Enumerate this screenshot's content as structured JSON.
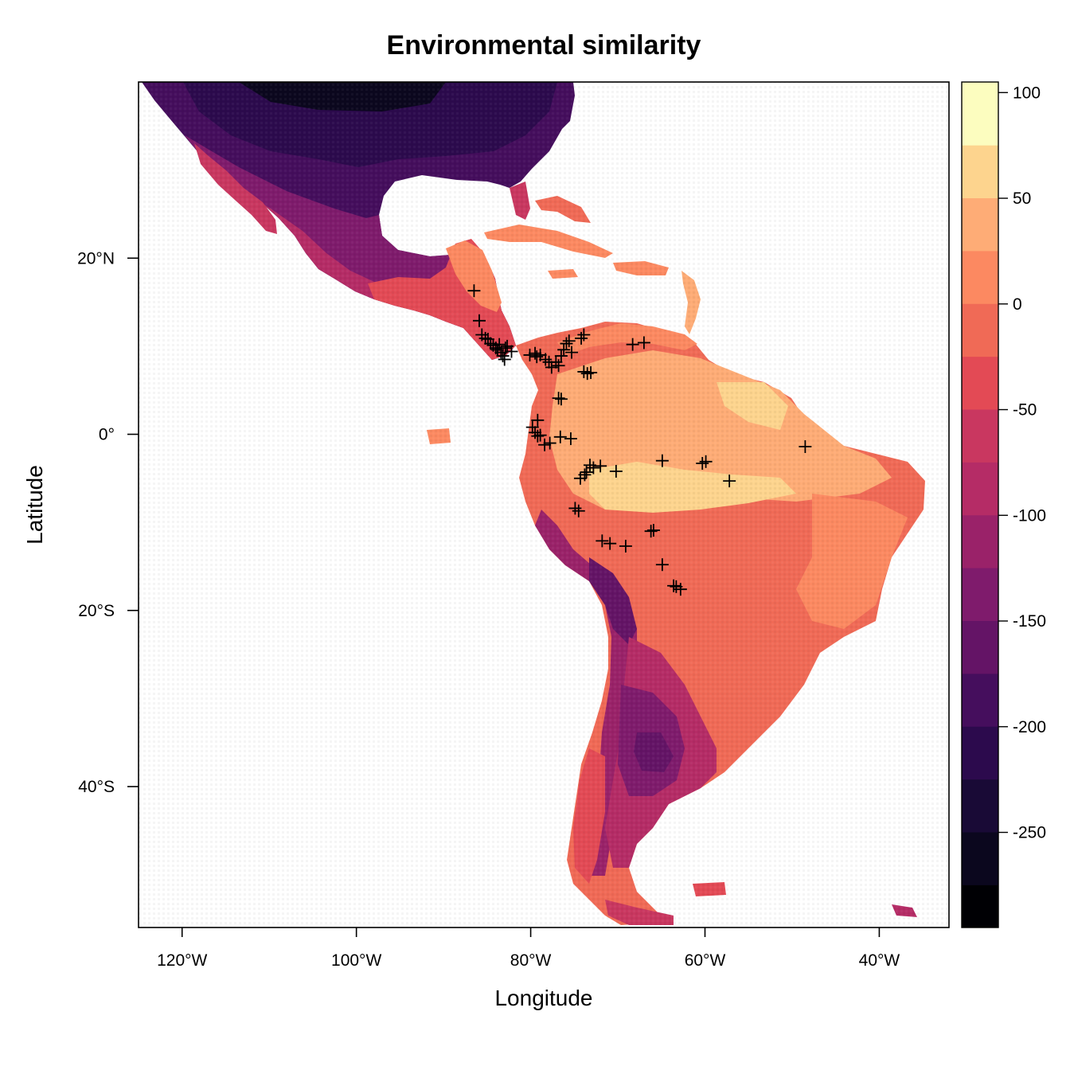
{
  "title": "Environmental similarity",
  "x_axis": {
    "label": "Longitude",
    "range": [
      -125,
      -32
    ],
    "ticks": [
      {
        "value": -120,
        "label": "120°W"
      },
      {
        "value": -100,
        "label": "100°W"
      },
      {
        "value": -80,
        "label": "80°W"
      },
      {
        "value": -60,
        "label": "60°W"
      },
      {
        "value": -40,
        "label": "40°W"
      }
    ]
  },
  "y_axis": {
    "label": "Latitude",
    "range": [
      -56,
      40
    ],
    "ticks": [
      {
        "value": 20,
        "label": "20°N"
      },
      {
        "value": 0,
        "label": "0°"
      },
      {
        "value": -20,
        "label": "20°S"
      },
      {
        "value": -40,
        "label": "40°S"
      }
    ]
  },
  "color_scale": {
    "range": [
      -295,
      105
    ],
    "labels": [
      {
        "value": 100,
        "label": "100"
      },
      {
        "value": 50,
        "label": "50"
      },
      {
        "value": 0,
        "label": "0"
      },
      {
        "value": -50,
        "label": "-50"
      },
      {
        "value": -100,
        "label": "-100"
      },
      {
        "value": -150,
        "label": "-150"
      },
      {
        "value": -200,
        "label": "-200"
      },
      {
        "value": -250,
        "label": "-250"
      }
    ],
    "bins": [
      {
        "from": 75,
        "to": 105,
        "color": "#fcfdbf"
      },
      {
        "from": 50,
        "to": 75,
        "color": "#fdd48e"
      },
      {
        "from": 25,
        "to": 50,
        "color": "#feac76"
      },
      {
        "from": 0,
        "to": 25,
        "color": "#fc8961"
      },
      {
        "from": -25,
        "to": 0,
        "color": "#f06a56"
      },
      {
        "from": -50,
        "to": -25,
        "color": "#e34a55"
      },
      {
        "from": -75,
        "to": -50,
        "color": "#c93760"
      },
      {
        "from": -100,
        "to": -75,
        "color": "#b52c66"
      },
      {
        "from": -125,
        "to": -100,
        "color": "#9a2269"
      },
      {
        "from": -150,
        "to": -125,
        "color": "#7f1b6c"
      },
      {
        "from": -175,
        "to": -150,
        "color": "#641466"
      },
      {
        "from": -200,
        "to": -175,
        "color": "#450e5d"
      },
      {
        "from": -225,
        "to": -200,
        "color": "#2c0a4d"
      },
      {
        "from": -250,
        "to": -225,
        "color": "#190a36"
      },
      {
        "from": -275,
        "to": -250,
        "color": "#0b071e"
      },
      {
        "from": -295,
        "to": -275,
        "color": "#000004"
      }
    ]
  },
  "chart_data": {
    "type": "scatter",
    "title": "Environmental similarity",
    "xlabel": "Longitude",
    "ylabel": "Latitude",
    "xlim": [
      -125,
      -32
    ],
    "ylim": [
      -56,
      40
    ],
    "points": [
      [
        -86.5,
        16.3
      ],
      [
        -85.9,
        12.9
      ],
      [
        -85.6,
        11.3
      ],
      [
        -85.2,
        10.9
      ],
      [
        -84.9,
        10.8
      ],
      [
        -84.6,
        10.3
      ],
      [
        -84.3,
        10.1
      ],
      [
        -84.0,
        9.8
      ],
      [
        -83.8,
        9.6
      ],
      [
        -83.6,
        10.2
      ],
      [
        -83.4,
        9.3
      ],
      [
        -83.2,
        8.9
      ],
      [
        -83.0,
        8.5
      ],
      [
        -82.9,
        9.8
      ],
      [
        -82.7,
        10.0
      ],
      [
        -82.2,
        9.4
      ],
      [
        -80.1,
        9.0
      ],
      [
        -79.5,
        9.2
      ],
      [
        -79.3,
        8.8
      ],
      [
        -78.9,
        9.0
      ],
      [
        -78.3,
        8.5
      ],
      [
        -77.9,
        8.2
      ],
      [
        -77.6,
        7.6
      ],
      [
        -77.1,
        8.2
      ],
      [
        -76.8,
        7.8
      ],
      [
        -76.5,
        8.9
      ],
      [
        -76.2,
        9.6
      ],
      [
        -75.9,
        10.3
      ],
      [
        -75.6,
        10.6
      ],
      [
        -75.3,
        9.3
      ],
      [
        -74.2,
        10.9
      ],
      [
        -73.9,
        11.3
      ],
      [
        -73.9,
        7.1
      ],
      [
        -73.5,
        6.9
      ],
      [
        -73.1,
        7.0
      ],
      [
        -76.8,
        4.1
      ],
      [
        -76.5,
        4.0
      ],
      [
        -68.3,
        10.2
      ],
      [
        -67.0,
        10.4
      ],
      [
        -79.2,
        1.6
      ],
      [
        -79.8,
        0.8
      ],
      [
        -79.5,
        0.2
      ],
      [
        -79.2,
        -0.2
      ],
      [
        -78.9,
        -0.1
      ],
      [
        -78.4,
        -1.2
      ],
      [
        -77.8,
        -1.0
      ],
      [
        -76.6,
        -0.3
      ],
      [
        -75.4,
        -0.5
      ],
      [
        -73.2,
        -3.5
      ],
      [
        -72.8,
        -3.8
      ],
      [
        -73.6,
        -4.3
      ],
      [
        -73.8,
        -4.6
      ],
      [
        -74.3,
        -5.0
      ],
      [
        -72.0,
        -3.6
      ],
      [
        -70.2,
        -4.2
      ],
      [
        -64.9,
        -3.0
      ],
      [
        -60.3,
        -3.3
      ],
      [
        -59.9,
        -3.1
      ],
      [
        -57.2,
        -5.3
      ],
      [
        -48.5,
        -1.4
      ],
      [
        -74.9,
        -8.4
      ],
      [
        -74.5,
        -8.7
      ],
      [
        -71.8,
        -12.1
      ],
      [
        -70.9,
        -12.4
      ],
      [
        -69.1,
        -12.7
      ],
      [
        -66.2,
        -11.0
      ],
      [
        -65.9,
        -10.9
      ],
      [
        -64.9,
        -14.8
      ],
      [
        -63.3,
        -17.3
      ],
      [
        -62.8,
        -17.6
      ],
      [
        -63.6,
        -17.2
      ]
    ]
  }
}
